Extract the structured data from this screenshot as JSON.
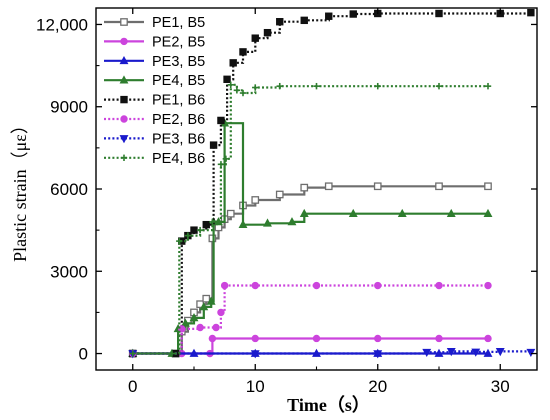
{
  "chart_data": {
    "type": "line",
    "xlabel": "Time（s）",
    "ylabel": "Plastic strain（με）",
    "xlim": [
      -3,
      33
    ],
    "ylim": [
      -600,
      12600
    ],
    "x_ticks": [
      0,
      10,
      20,
      30
    ],
    "x_tick_labels": [
      "0",
      "10",
      "20",
      "30"
    ],
    "y_ticks": [
      0,
      3000,
      6000,
      9000,
      12000
    ],
    "y_tick_labels": [
      "0",
      "3000",
      "6000",
      "9000",
      "12,000"
    ],
    "grid": false,
    "legend_position": "top-left",
    "series": [
      {
        "name": "PE1, B5",
        "color": "#6e6e6e",
        "dash": "solid",
        "marker": "square-open",
        "x": [
          0,
          3.5,
          4.0,
          4.5,
          5.0,
          5.5,
          6.0,
          6.5,
          7.0,
          7.5,
          8.0,
          9.0,
          10.0,
          12.0,
          14.0,
          16.0,
          20.0,
          25.0,
          29.0
        ],
        "y": [
          0,
          0,
          800,
          1200,
          1500,
          1800,
          2000,
          4200,
          4600,
          4900,
          5100,
          5400,
          5600,
          5800,
          6050,
          6100,
          6100,
          6100,
          6100
        ]
      },
      {
        "name": "PE2, B5",
        "color": "#cc44dd",
        "dash": "solid",
        "marker": "circle-filled",
        "x": [
          0,
          4.0,
          6.3,
          6.5,
          10.0,
          15.0,
          20.0,
          25.0,
          29.0
        ],
        "y": [
          0,
          0,
          0,
          550,
          550,
          550,
          550,
          550,
          550
        ]
      },
      {
        "name": "PE3, B5",
        "color": "#1a1acc",
        "dash": "solid",
        "marker": "triangle-up",
        "x": [
          0,
          5.0,
          10.0,
          15.0,
          20.0,
          25.0,
          29.0
        ],
        "y": [
          0,
          0,
          0,
          0,
          0,
          0,
          0
        ]
      },
      {
        "name": "PE4, B5",
        "color": "#2e7d2e",
        "dash": "solid",
        "marker": "triangle-up",
        "x": [
          0,
          3.2,
          3.7,
          4.3,
          5.0,
          5.8,
          6.4,
          6.6,
          7.0,
          7.5,
          9.0,
          11.0,
          13.0,
          14.0,
          18.0,
          22.0,
          26.0,
          29.0
        ],
        "y": [
          0,
          0,
          900,
          1100,
          1300,
          1700,
          1900,
          4800,
          4800,
          8400,
          4700,
          4750,
          4800,
          5100,
          5100,
          5100,
          5100,
          5100
        ]
      },
      {
        "name": "PE1, B6",
        "color": "#111111",
        "dash": "dot",
        "marker": "square-filled",
        "x": [
          0,
          3.5,
          4.0,
          4.5,
          5.0,
          6.0,
          6.6,
          7.2,
          7.7,
          8.2,
          9.0,
          10.0,
          11.0,
          12.0,
          14.0,
          16.0,
          18.0,
          20.0,
          25.0,
          30.0,
          32.5
        ],
        "y": [
          0,
          0,
          4100,
          4300,
          4500,
          4700,
          7600,
          8500,
          10000,
          10600,
          11000,
          11500,
          11700,
          12100,
          12150,
          12300,
          12380,
          12400,
          12400,
          12400,
          12430
        ]
      },
      {
        "name": "PE2, B6",
        "color": "#cc44dd",
        "dash": "dot",
        "marker": "circle-filled",
        "x": [
          0,
          4.0,
          5.5,
          6.8,
          7.2,
          7.5,
          10.0,
          15.0,
          20.0,
          25.0,
          29.0
        ],
        "y": [
          0,
          900,
          950,
          950,
          1500,
          2480,
          2480,
          2480,
          2480,
          2480,
          2480
        ]
      },
      {
        "name": "PE3, B6",
        "color": "#1a1acc",
        "dash": "dot",
        "marker": "triangle-down",
        "x": [
          0,
          10.0,
          20.0,
          24.0,
          26.0,
          28.0,
          30.0,
          32.5
        ],
        "y": [
          0,
          0,
          0,
          50,
          80,
          60,
          80,
          50
        ]
      },
      {
        "name": "PE4, B6",
        "color": "#2e7d2e",
        "dash": "dot",
        "marker": "plus",
        "x": [
          0,
          3.2,
          3.8,
          4.5,
          5.5,
          6.5,
          7.2,
          7.6,
          8.0,
          8.5,
          9.0,
          10.0,
          12.0,
          15.0,
          20.0,
          25.0,
          29.0
        ],
        "y": [
          0,
          0,
          4100,
          4300,
          4500,
          4800,
          6900,
          7100,
          9800,
          9600,
          9500,
          9700,
          9750,
          9750,
          9750,
          9750,
          9750
        ]
      }
    ]
  }
}
